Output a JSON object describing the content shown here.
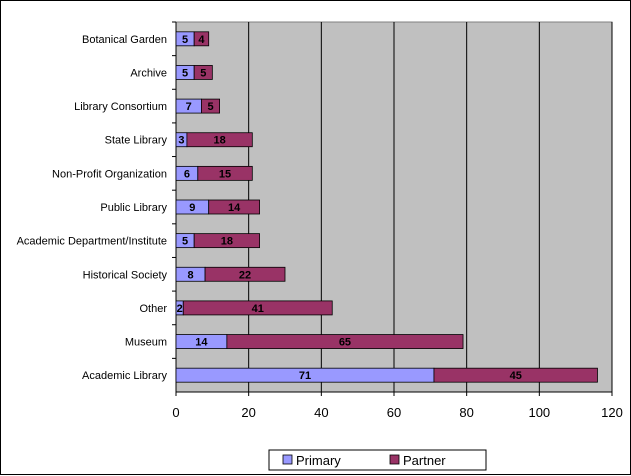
{
  "chart_data": {
    "type": "bar",
    "orientation": "horizontal",
    "stacked": true,
    "categories": [
      "Botanical Garden",
      "Archive",
      "Library Consortium",
      "State Library",
      "Non-Profit Organization",
      "Public Library",
      "Academic Department/Institute",
      "Historical Society",
      "Other",
      "Museum",
      "Academic Library"
    ],
    "series": [
      {
        "name": "Primary",
        "color": "#9999ff",
        "values": [
          5,
          5,
          7,
          3,
          6,
          9,
          5,
          8,
          2,
          14,
          71
        ]
      },
      {
        "name": "Partner",
        "color": "#993366",
        "values": [
          4,
          5,
          5,
          18,
          15,
          14,
          18,
          22,
          41,
          65,
          45
        ]
      }
    ],
    "xlim": [
      0,
      120
    ],
    "xticks": [
      0,
      20,
      40,
      60,
      80,
      100,
      120
    ],
    "grid": true,
    "plot_background": "#c0c0c0",
    "legend_position": "bottom"
  }
}
